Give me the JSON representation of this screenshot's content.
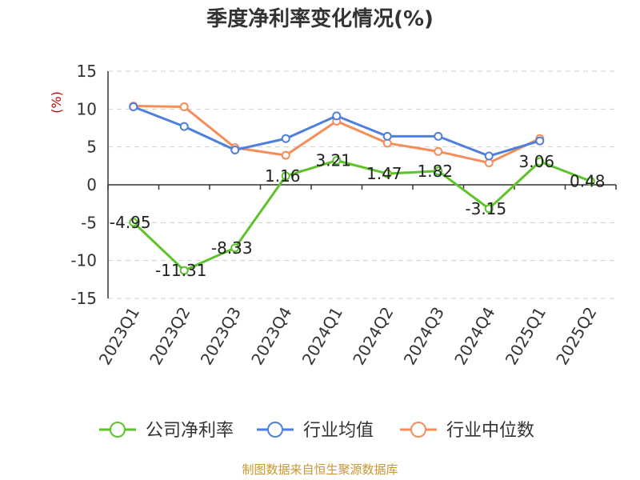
{
  "chart_data": {
    "type": "line",
    "title": "季度净利率变化情况(%)",
    "ylabel": "(%)",
    "xlabel": "",
    "categories": [
      "2023Q1",
      "2023Q2",
      "2023Q3",
      "2023Q4",
      "2024Q1",
      "2024Q2",
      "2024Q3",
      "2024Q4",
      "2025Q1",
      "2025Q2"
    ],
    "ylim": [
      -15,
      15
    ],
    "yticks": [
      15,
      10,
      5,
      0,
      -5,
      -10,
      -15
    ],
    "grid": true,
    "legend_position": "bottom",
    "series": [
      {
        "name": "公司净利率",
        "color": "#5ec22a",
        "values": [
          -4.95,
          -11.31,
          -8.33,
          1.16,
          3.21,
          1.47,
          1.82,
          -3.15,
          3.06,
          0.48
        ],
        "labels": [
          "-4.95",
          "-11.31",
          "-8.33",
          "1.16",
          "3.21",
          "1.47",
          "1.82",
          "-3.15",
          "3.06",
          "0.48"
        ]
      },
      {
        "name": "行业均值",
        "color": "#4f7fdc",
        "values": [
          10.3,
          7.7,
          4.6,
          6.1,
          9.1,
          6.4,
          6.4,
          3.8,
          5.8,
          null
        ]
      },
      {
        "name": "行业中位数",
        "color": "#f58d5a",
        "values": [
          10.4,
          10.3,
          4.9,
          3.9,
          8.4,
          5.5,
          4.4,
          2.9,
          6.1,
          null
        ]
      }
    ]
  },
  "footer": {
    "source": "制图数据来自恒生聚源数据库"
  }
}
